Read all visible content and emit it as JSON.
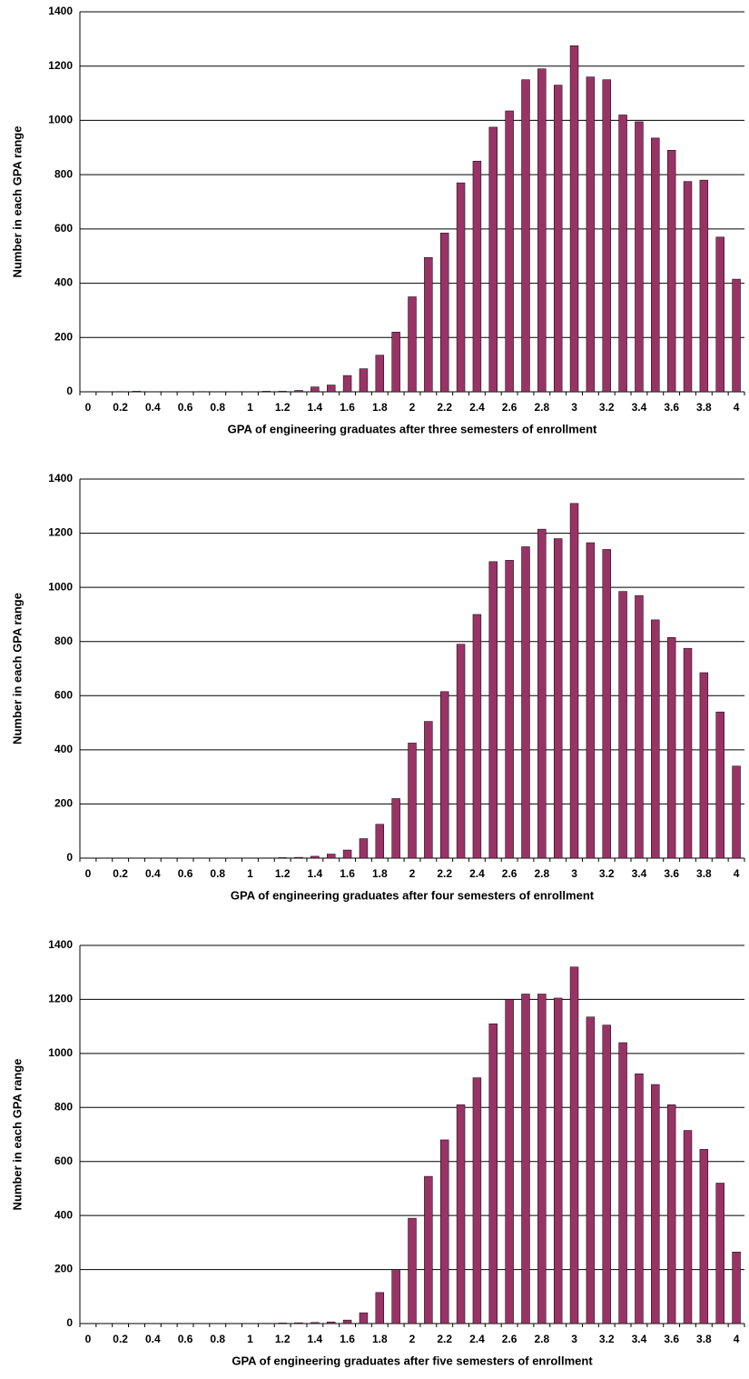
{
  "chart_data": [
    {
      "type": "bar",
      "x_label": "GPA of engineering graduates after three semesters of enrollment",
      "y_label": "Number in each GPA range",
      "categories": [
        "0",
        null,
        "0.2",
        null,
        "0.4",
        null,
        "0.6",
        null,
        "0.8",
        null,
        "1",
        null,
        "1.2",
        null,
        "1.4",
        null,
        "1.6",
        null,
        "1.8",
        null,
        "2",
        null,
        "2.2",
        null,
        "2.4",
        null,
        "2.6",
        null,
        "2.8",
        null,
        "3",
        null,
        "3.2",
        null,
        "3.4",
        null,
        "3.6",
        null,
        "3.8",
        null,
        "4"
      ],
      "values": [
        0,
        0,
        1,
        2,
        0,
        0,
        0,
        1,
        0,
        0,
        0,
        2,
        2,
        5,
        18,
        25,
        60,
        85,
        135,
        220,
        350,
        495,
        585,
        770,
        850,
        975,
        1035,
        1150,
        1190,
        1130,
        1275,
        1160,
        1150,
        1020,
        995,
        935,
        890,
        775,
        780,
        570,
        415
      ],
      "color": "#993366",
      "ylim": [
        0,
        1400
      ],
      "yticks": [
        0,
        200,
        400,
        600,
        800,
        1000,
        1200,
        1400
      ],
      "grid": true
    },
    {
      "type": "bar",
      "x_label": "GPA of engineering graduates after four semesters of enrollment",
      "y_label": "Number in each GPA range",
      "categories": [
        "0",
        null,
        "0.2",
        null,
        "0.4",
        null,
        "0.6",
        null,
        "0.8",
        null,
        "1",
        null,
        "1.2",
        null,
        "1.4",
        null,
        "1.6",
        null,
        "1.8",
        null,
        "2",
        null,
        "2.2",
        null,
        "2.4",
        null,
        "2.6",
        null,
        "2.8",
        null,
        "3",
        null,
        "3.2",
        null,
        "3.4",
        null,
        "3.6",
        null,
        "3.8",
        null,
        "4"
      ],
      "values": [
        0,
        0,
        0,
        0,
        0,
        0,
        0,
        0,
        0,
        0,
        0,
        1,
        2,
        3,
        7,
        15,
        30,
        72,
        125,
        220,
        425,
        505,
        615,
        790,
        900,
        1095,
        1100,
        1150,
        1215,
        1180,
        1310,
        1165,
        1140,
        985,
        970,
        880,
        815,
        775,
        685,
        540,
        340
      ],
      "color": "#993366",
      "ylim": [
        0,
        1400
      ],
      "yticks": [
        0,
        200,
        400,
        600,
        800,
        1000,
        1200,
        1400
      ],
      "grid": true
    },
    {
      "type": "bar",
      "x_label": "GPA of engineering graduates after five semesters of enrollment",
      "y_label": "Number in each GPA range",
      "categories": [
        "0",
        null,
        "0.2",
        null,
        "0.4",
        null,
        "0.6",
        null,
        "0.8",
        null,
        "1",
        null,
        "1.2",
        null,
        "1.4",
        null,
        "1.6",
        null,
        "1.8",
        null,
        "2",
        null,
        "2.2",
        null,
        "2.4",
        null,
        "2.6",
        null,
        "2.8",
        null,
        "3",
        null,
        "3.2",
        null,
        "3.4",
        null,
        "3.6",
        null,
        "3.8",
        null,
        "4"
      ],
      "values": [
        0,
        0,
        0,
        0,
        0,
        0,
        0,
        0,
        0,
        0,
        0,
        1,
        2,
        3,
        4,
        6,
        13,
        40,
        115,
        200,
        390,
        545,
        680,
        810,
        910,
        1110,
        1200,
        1220,
        1220,
        1205,
        1320,
        1135,
        1105,
        1040,
        925,
        885,
        810,
        715,
        645,
        520,
        265
      ],
      "color": "#993366",
      "ylim": [
        0,
        1400
      ],
      "yticks": [
        0,
        200,
        400,
        600,
        800,
        1000,
        1200,
        1400
      ],
      "grid": true
    }
  ]
}
